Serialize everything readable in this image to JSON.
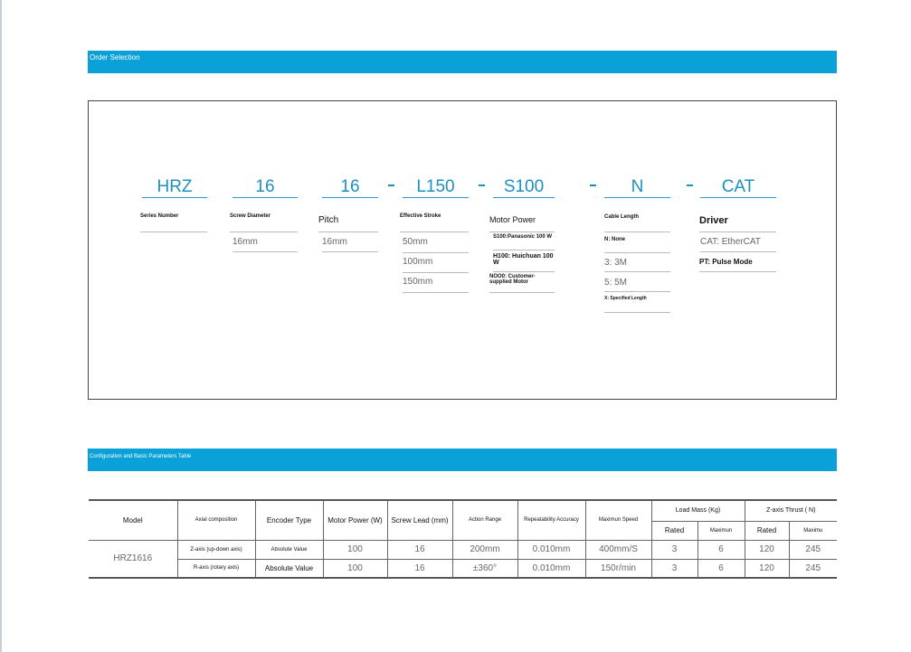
{
  "sections": {
    "order_title": "Order Selection",
    "params_title": "Configuration and Basic Parameters Table"
  },
  "accent": "#0aa0d8",
  "order": {
    "codes": [
      "HRZ",
      "16",
      "16",
      "L150",
      "S100",
      "N",
      "CAT"
    ],
    "series": {
      "label": "Series Number"
    },
    "screw": {
      "label": "Screw Diameter",
      "options": [
        "16mm"
      ]
    },
    "pitch": {
      "label": "Pitch",
      "options": [
        "16mm"
      ]
    },
    "stroke": {
      "label": "Effective Stroke",
      "options": [
        "50mm",
        "100mm",
        "150mm"
      ]
    },
    "motor": {
      "label": "Motor Power",
      "options": [
        "S100:Panasonic 100 W",
        "H100: Huichuan 100 W",
        "NOO0: Customer-supplied Motor"
      ]
    },
    "cable": {
      "label": "Cable Length",
      "options": [
        "N: None",
        "3: 3M",
        "5: 5M",
        "X: Specified Length"
      ]
    },
    "driver": {
      "label": "Driver",
      "options": [
        "CAT: EtherCAT",
        "PT: Pulse Mode"
      ]
    }
  },
  "table": {
    "headers": [
      "Model",
      "Axial composition",
      "Encoder Type",
      "Motor Power (W)",
      "Screw Lead (mm)",
      "Action Range",
      "Repeatability Accuracy",
      "Maximun Speed",
      "Load Mass (Kg)",
      "Z-axis Thrust ( N)"
    ],
    "sub": [
      "Rated",
      "Maximun",
      "Rated",
      "Maximu"
    ],
    "model": "HRZ1616",
    "rows": [
      [
        "Z-axis (up-down axis)",
        "Absolute Value",
        "100",
        "16",
        "200mm",
        "0.010mm",
        "400mm/S",
        "3",
        "6",
        "120",
        "245"
      ],
      [
        "R-axis (rotary axis)",
        "Absolute Value",
        "100",
        "16",
        "±360°",
        "0.010mm",
        "150r/min",
        "3",
        "6",
        "120",
        "245"
      ]
    ]
  }
}
